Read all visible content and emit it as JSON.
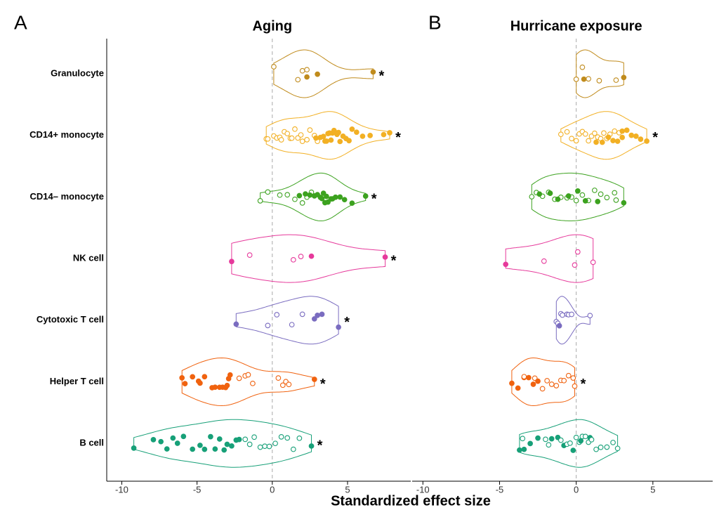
{
  "chart_data": [
    {
      "type": "violin",
      "panel_label": "A",
      "title": "Aging",
      "refline": 0,
      "categories": [
        "Granulocyte",
        "CD14+ monocyte",
        "CD14– monocyte",
        "NK cell",
        "Cytotoxic T cell",
        "Helper T cell",
        "B cell"
      ],
      "colors": [
        "#c08b1c",
        "#f2b024",
        "#3ca21f",
        "#e6399b",
        "#7a6cc0",
        "#f0620f",
        "#17a078"
      ],
      "xlim": [
        -11,
        9.2
      ],
      "xticks": [
        -10,
        -5,
        0,
        5
      ],
      "groups": [
        {
          "values": [
            0.1,
            1.7,
            2.0,
            2.3,
            2.3,
            3.0,
            6.7
          ],
          "filled": [
            false,
            false,
            false,
            false,
            true,
            true,
            true
          ],
          "annotation": "*"
        },
        {
          "values": [
            -0.4,
            -0.3,
            0.1,
            0.3,
            0.5,
            0.6,
            0.8,
            1.0,
            1.2,
            1.3,
            1.5,
            1.7,
            1.9,
            2.0,
            2.3,
            2.5,
            2.8,
            3.0,
            2.9,
            3.2,
            3.4,
            3.5,
            3.6,
            3.7,
            3.8,
            3.9,
            4.0,
            4.1,
            4.2,
            4.3,
            4.4,
            4.5,
            4.7,
            4.9,
            5.1,
            5.3,
            5.6,
            6.0,
            6.5,
            7.4,
            7.8
          ],
          "filled": [
            false,
            false,
            false,
            false,
            false,
            false,
            false,
            false,
            false,
            false,
            false,
            false,
            false,
            false,
            false,
            false,
            false,
            false,
            true,
            true,
            true,
            true,
            true,
            true,
            true,
            true,
            true,
            true,
            true,
            true,
            true,
            true,
            true,
            true,
            true,
            true,
            true,
            true,
            true,
            true,
            true
          ],
          "annotation": "*"
        },
        {
          "values": [
            -0.8,
            -0.3,
            0.5,
            1.0,
            1.5,
            2.0,
            2.3,
            2.6,
            1.8,
            2.2,
            2.5,
            2.8,
            3.0,
            3.2,
            3.3,
            3.4,
            3.5,
            3.6,
            3.7,
            3.9,
            4.0,
            4.2,
            4.5,
            4.8,
            5.3,
            6.2
          ],
          "filled": [
            false,
            false,
            false,
            false,
            false,
            false,
            false,
            false,
            true,
            true,
            true,
            true,
            true,
            true,
            true,
            true,
            true,
            true,
            true,
            true,
            true,
            true,
            true,
            true,
            true,
            true
          ],
          "annotation": "*"
        },
        {
          "values": [
            -2.7,
            -1.5,
            1.4,
            1.9,
            2.6,
            7.5
          ],
          "filled": [
            true,
            false,
            false,
            false,
            true,
            true
          ],
          "annotation": "*"
        },
        {
          "values": [
            -2.4,
            -0.3,
            0.3,
            1.3,
            2.0,
            2.8,
            3.0,
            3.3,
            4.4
          ],
          "filled": [
            true,
            false,
            false,
            false,
            false,
            true,
            true,
            true,
            true
          ],
          "annotation": "*"
        },
        {
          "values": [
            -6.0,
            -5.8,
            -5.3,
            -4.9,
            -4.8,
            -4.5,
            -4.0,
            -3.8,
            -3.5,
            -3.3,
            -3.1,
            -3.0,
            -2.9,
            -2.8,
            -2.2,
            -1.8,
            -1.6,
            -1.3,
            0.4,
            0.7,
            0.9,
            1.1,
            2.8
          ],
          "filled": [
            true,
            true,
            true,
            true,
            true,
            true,
            true,
            true,
            true,
            true,
            true,
            true,
            true,
            true,
            false,
            false,
            false,
            false,
            false,
            false,
            false,
            false,
            true
          ],
          "annotation": "*"
        },
        {
          "values": [
            -9.2,
            -7.9,
            -7.4,
            -7.0,
            -6.6,
            -6.3,
            -5.9,
            -5.3,
            -4.8,
            -4.5,
            -4.1,
            -3.8,
            -3.5,
            -3.2,
            -3.0,
            -2.7,
            -2.4,
            -2.2,
            -1.8,
            -1.5,
            -1.2,
            -0.8,
            -0.5,
            -0.2,
            0.2,
            0.6,
            1.0,
            1.4,
            1.8,
            2.6
          ],
          "filled": [
            true,
            true,
            true,
            true,
            true,
            true,
            true,
            true,
            true,
            true,
            true,
            true,
            true,
            true,
            true,
            true,
            true,
            true,
            false,
            false,
            false,
            false,
            false,
            false,
            false,
            false,
            false,
            false,
            false,
            true
          ],
          "annotation": "*"
        }
      ]
    },
    {
      "type": "violin",
      "panel_label": "B",
      "title": "Hurricane exposure",
      "refline": 0,
      "colors": [
        "#c08b1c",
        "#f2b024",
        "#3ca21f",
        "#e6399b",
        "#7a6cc0",
        "#f0620f",
        "#17a078"
      ],
      "xlim": [
        -10.7,
        8.9
      ],
      "xticks": [
        -10,
        -5,
        0,
        5
      ],
      "groups": [
        {
          "values": [
            0,
            0.4,
            0.5,
            0.8,
            1.5,
            2.6,
            3.1
          ],
          "filled": [
            false,
            false,
            true,
            false,
            false,
            false,
            true
          ]
        },
        {
          "values": [
            -1.0,
            -0.6,
            -0.3,
            0,
            0.2,
            0.4,
            0.6,
            0.8,
            1.0,
            1.2,
            1.4,
            1.6,
            1.8,
            2.0,
            2.2,
            2.5,
            2.8,
            1.3,
            1.7,
            2.1,
            2.4,
            2.7,
            3.0,
            3.0,
            3.3,
            3.6,
            3.9,
            4.2,
            4.6
          ],
          "filled": [
            false,
            false,
            false,
            false,
            false,
            false,
            false,
            false,
            false,
            false,
            false,
            false,
            false,
            false,
            false,
            false,
            false,
            true,
            true,
            true,
            true,
            true,
            true,
            true,
            true,
            true,
            true,
            true,
            true
          ],
          "annotation": "*"
        },
        {
          "values": [
            -2.9,
            -2.6,
            -2.2,
            -1.8,
            -1.4,
            -1.0,
            -0.6,
            -0.3,
            0,
            0.4,
            0.8,
            1.2,
            1.6,
            2.0,
            2.5,
            2.6,
            -2.4,
            -1.7,
            -1.2,
            -0.5,
            0.1,
            0.6,
            1.4,
            3.1
          ],
          "filled": [
            false,
            false,
            false,
            false,
            false,
            false,
            false,
            false,
            false,
            false,
            false,
            false,
            false,
            false,
            false,
            false,
            true,
            true,
            true,
            true,
            true,
            true,
            true,
            true
          ]
        },
        {
          "values": [
            -4.6,
            -2.1,
            -0.1,
            0.1,
            1.1
          ],
          "filled": [
            true,
            false,
            false,
            false,
            false
          ]
        },
        {
          "values": [
            -1.3,
            -1.2,
            -1.1,
            -1.0,
            -0.9,
            -0.6,
            -0.5,
            -0.3,
            0.9
          ],
          "filled": [
            false,
            false,
            true,
            false,
            false,
            false,
            false,
            false,
            false
          ]
        },
        {
          "values": [
            -4.2,
            -3.8,
            -3.4,
            -3.4,
            -3.1,
            -2.8,
            -2.7,
            -2.5,
            -2.2,
            -1.9,
            -1.6,
            -1.3,
            -1.0,
            -0.8,
            -0.5,
            -0.2,
            -0.1
          ],
          "filled": [
            true,
            true,
            true,
            false,
            true,
            true,
            false,
            true,
            false,
            false,
            false,
            false,
            false,
            false,
            false,
            false,
            false
          ],
          "annotation": "*"
        },
        {
          "values": [
            -3.7,
            -3.5,
            -3.4,
            -3.0,
            -2.5,
            -2.0,
            -1.8,
            -1.6,
            -1.2,
            -1.0,
            -0.8,
            -0.6,
            -0.4,
            -0.2,
            0,
            0.2,
            0.3,
            0.4,
            0.6,
            0.8,
            0.9,
            1.0,
            1.3,
            1.6,
            2.0,
            2.4,
            2.7
          ],
          "filled": [
            true,
            false,
            true,
            true,
            true,
            false,
            false,
            true,
            true,
            false,
            true,
            false,
            false,
            true,
            false,
            false,
            true,
            false,
            false,
            false,
            true,
            false,
            false,
            false,
            false,
            false,
            false
          ]
        }
      ]
    }
  ],
  "axis_title": "Standardized effect size"
}
